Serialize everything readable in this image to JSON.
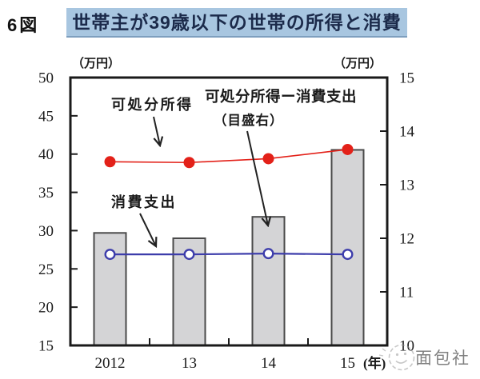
{
  "figure": {
    "number_label": "6図",
    "title": "世帯主が39歳以下の世帯の所得と消費"
  },
  "chart_data": {
    "type": "bar",
    "subtype": "combo-bar-and-lines",
    "categories": [
      "2012",
      "13",
      "14",
      "15"
    ],
    "x_axis_label": "(年)",
    "grid": false,
    "legend_position": "in-plot annotations with arrows",
    "left_axis": {
      "unit": "（万円）",
      "min": 15,
      "max": 50,
      "tick_step": 5,
      "ticks": [
        15,
        20,
        25,
        30,
        35,
        40,
        45,
        50
      ]
    },
    "right_axis": {
      "unit": "（万円）",
      "min": 10,
      "max": 15,
      "tick_step": 1,
      "ticks": [
        10,
        11,
        12,
        13,
        14,
        15
      ]
    },
    "series": [
      {
        "name": "可処分所得ー消費支出（目盛右）",
        "type": "bar",
        "axis": "right",
        "color": "#d4d4d6",
        "stroke": "#4a4a4a",
        "values": [
          12.1,
          12.0,
          12.4,
          13.65
        ]
      },
      {
        "name": "消費支出",
        "type": "line",
        "axis": "left",
        "marker": "open-circle",
        "color": "#3d3dab",
        "values": [
          26.9,
          26.9,
          27.0,
          26.9
        ]
      },
      {
        "name": "可処分所得",
        "type": "line",
        "axis": "left",
        "marker": "filled-circle",
        "color": "#e32119",
        "values": [
          39.0,
          38.9,
          39.4,
          40.6
        ]
      }
    ],
    "annotations": {
      "disposable_income": "可処分所得",
      "difference_line1": "可処分所得ー消費支出",
      "difference_line2": "（目盛右）",
      "consumption": "消費支出"
    }
  },
  "watermark": {
    "text": "面包社"
  },
  "colors": {
    "income_red": "#e32119",
    "consumption_blue": "#3d3dab",
    "bar_fill": "#d4d4d6",
    "bar_stroke": "#4a4a4a",
    "title_highlight": "#a8c6e0",
    "title_text": "#1b2a4a",
    "axis_black": "#1a1a1a",
    "watermark_gray": "#9b9b9b"
  }
}
